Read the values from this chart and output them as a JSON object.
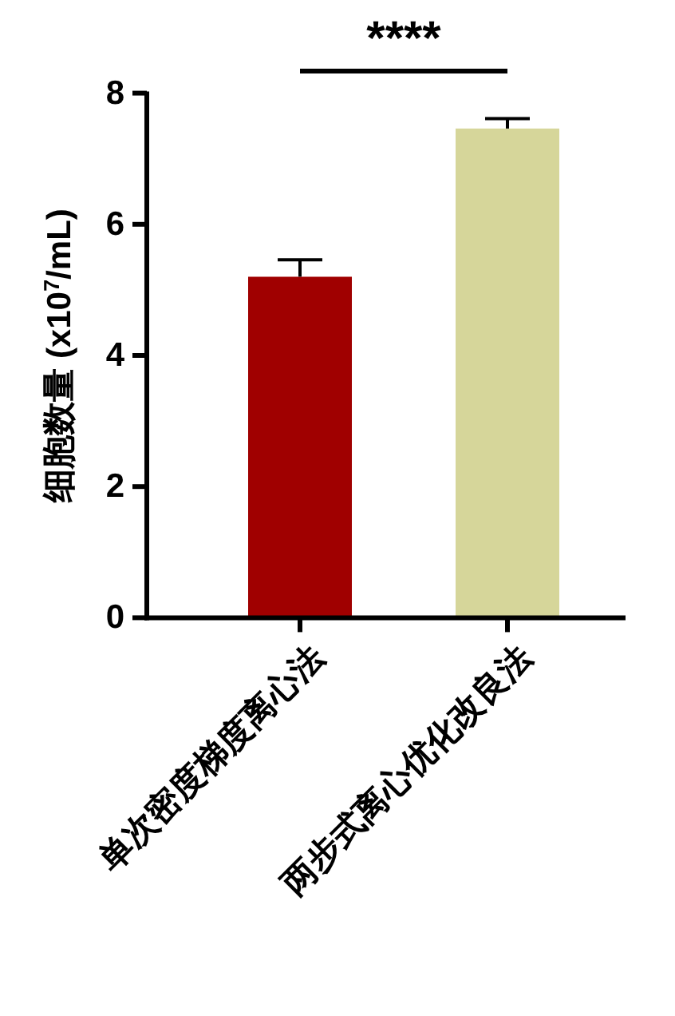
{
  "chart_data": {
    "type": "bar",
    "ylabel": "细胞数量 (x10$^{7}$/mL)",
    "categories": [
      "单次密度梯度离心法",
      "两步式离心优化改良法"
    ],
    "values": [
      5.2,
      7.46
    ],
    "colors": [
      "#a00000",
      "#d6d69a"
    ],
    "errors": [
      [
        5.2,
        5.46
      ],
      [
        7.46,
        7.61
      ]
    ],
    "ylim": [
      0,
      8
    ],
    "yticks": [
      0,
      2,
      4,
      6,
      8
    ],
    "grid": false,
    "annotations": [
      "****"
    ]
  }
}
